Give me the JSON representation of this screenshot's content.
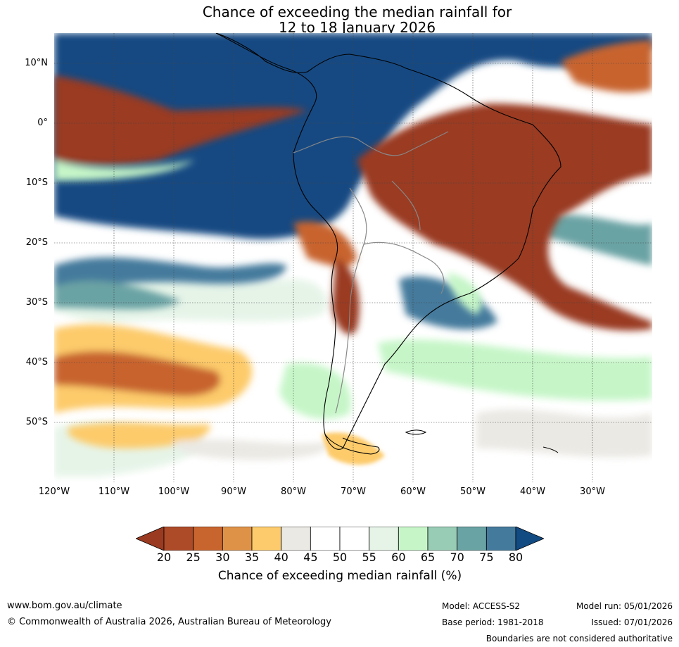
{
  "title": {
    "line1": "Chance of exceeding the median rainfall for",
    "line2": "12 to 18 January 2026"
  },
  "map": {
    "region": "South America",
    "lat_labels": [
      "10°N",
      "0°",
      "10°S",
      "20°S",
      "30°S",
      "40°S",
      "50°S"
    ],
    "lon_labels": [
      "120°W",
      "110°W",
      "100°W",
      "90°W",
      "80°W",
      "70°W",
      "60°W",
      "50°W",
      "40°W",
      "30°W"
    ]
  },
  "colorbar": {
    "ticks": [
      "20",
      "25",
      "30",
      "35",
      "40",
      "45",
      "50",
      "55",
      "60",
      "65",
      "70",
      "75",
      "80"
    ],
    "colors": [
      "#9a3a20",
      "#ad4a28",
      "#c8642e",
      "#de9248",
      "#fdcb6b",
      "#ebe9e4",
      "#ffffff",
      "#ffffff",
      "#e6f4e8",
      "#c6f6c8",
      "#98ccb4",
      "#6aa3a4",
      "#447a9c",
      "#124a82"
    ],
    "label": "Chance of exceeding median rainfall (%)"
  },
  "footer": {
    "website": "www.bom.gov.au/climate",
    "copyright": "© Commonwealth of Australia 2026, Australian Bureau of Meteorology",
    "model": "Model: ACCESS-S2",
    "base_period": "Base period: 1981-2018",
    "model_run": "Model run: 05/01/2026",
    "issued": "Issued: 07/01/2026",
    "disclaimer": "Boundaries are not considered authoritative"
  }
}
